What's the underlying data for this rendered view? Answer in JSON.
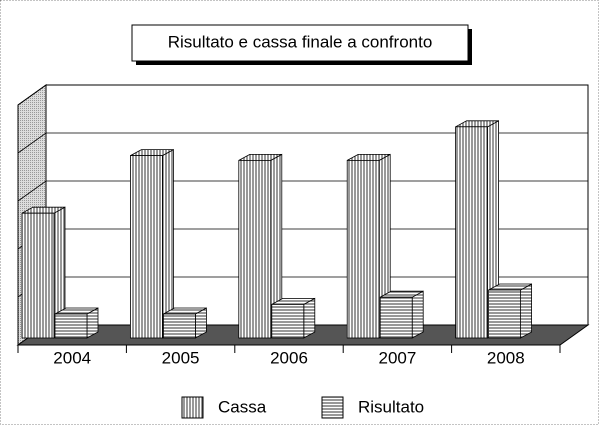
{
  "chart_data": {
    "type": "bar3d",
    "title": "Risultato e cassa finale a confronto",
    "categories": [
      "2004",
      "2005",
      "2006",
      "2007",
      "2008"
    ],
    "series": [
      {
        "name": "Cassa",
        "color": "#8c8c8c",
        "values": [
          2.6,
          3.8,
          3.7,
          3.7,
          4.4
        ]
      },
      {
        "name": "Risultato",
        "color": "#8c8c8c",
        "values": [
          0.5,
          0.5,
          0.7,
          0.85,
          1.0
        ]
      }
    ],
    "ylim": [
      0,
      5
    ],
    "yticks": [
      0,
      1,
      2,
      3,
      4,
      5
    ],
    "grid": true
  }
}
